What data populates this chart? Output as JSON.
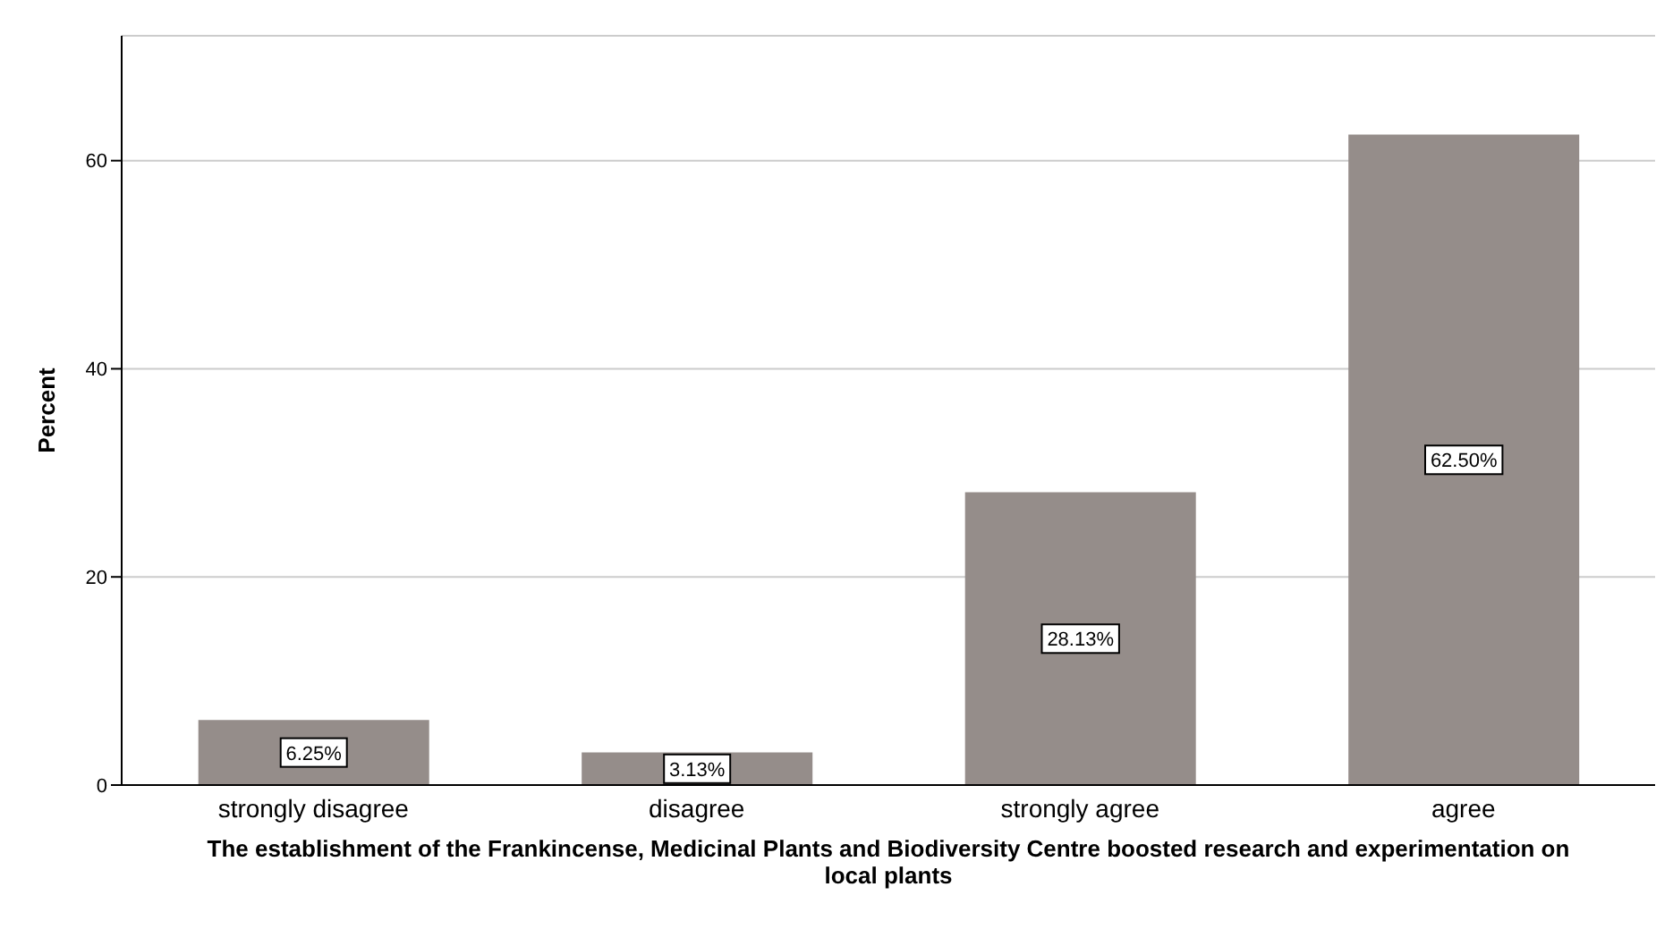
{
  "chart_data": {
    "type": "bar",
    "xlabel": "The establishment of the Frankincense, Medicinal Plants and Biodiversity Centre boosted research and experimentation on local plants",
    "ylabel": "Percent",
    "categories": [
      "strongly disagree",
      "disagree",
      "strongly agree",
      "agree"
    ],
    "values": [
      6.25,
      3.13,
      28.13,
      62.5
    ],
    "value_labels": [
      "6.25%",
      "3.13%",
      "28.13%",
      "62.50%"
    ],
    "color": "#958d8a",
    "ylim": [
      0,
      72
    ],
    "yticks": [
      0,
      20,
      40,
      60
    ],
    "grid": "y"
  }
}
